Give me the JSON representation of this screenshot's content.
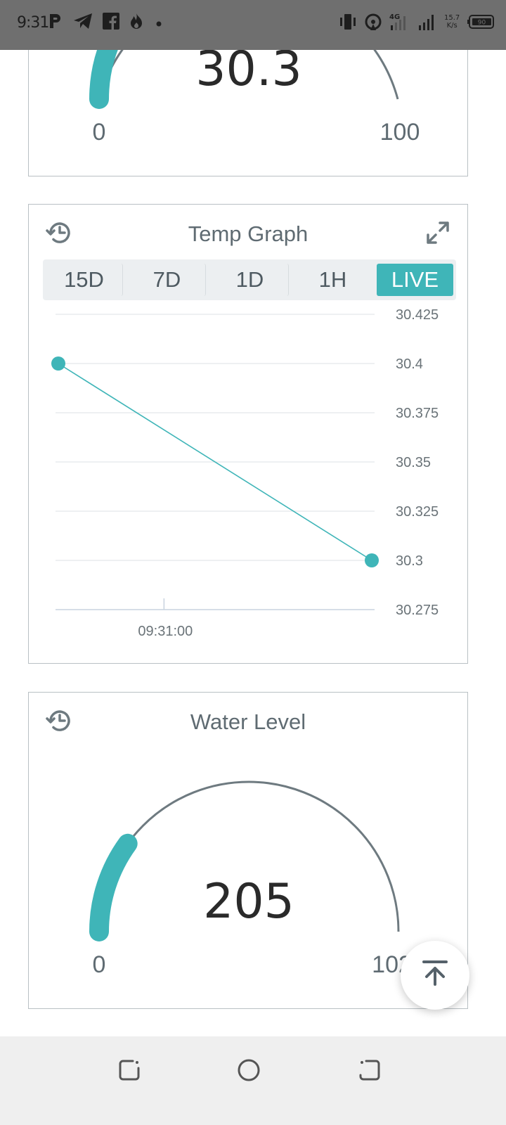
{
  "status_bar": {
    "time": "9:31",
    "left_icons": [
      "parking-p-icon",
      "telegram-icon",
      "facebook-icon",
      "flame-icon",
      "dot-icon"
    ],
    "right_icons": [
      "vibrate-icon",
      "hotspot-icon",
      "4g-signal-icon",
      "signal-icon",
      "battery-icon"
    ],
    "net_speed_value": "15.7",
    "net_speed_unit": "K/s",
    "network_type": "4G",
    "battery_level": "90"
  },
  "temp_gauge": {
    "value": "30.3",
    "min_label": "0",
    "max_label": "100",
    "fill_fraction": 0.303,
    "accent_color": "#3fb5b8"
  },
  "temp_graph": {
    "title": "Temp Graph",
    "history_icon": "history-icon",
    "expand_icon": "expand-icon",
    "tabs": [
      {
        "label": "15D",
        "active": false
      },
      {
        "label": "7D",
        "active": false
      },
      {
        "label": "1D",
        "active": false
      },
      {
        "label": "1H",
        "active": false
      },
      {
        "label": "LIVE",
        "active": true
      }
    ],
    "chart_data": {
      "type": "line",
      "x": [
        "09:30:59",
        "09:31:01"
      ],
      "x_tick_labels": [
        "09:31:00"
      ],
      "series": [
        {
          "values": [
            30.4,
            30.3
          ],
          "color": "#3fb5b8"
        }
      ],
      "y_ticks": [
        "30.425",
        "30.4",
        "30.375",
        "30.35",
        "30.325",
        "30.3",
        "30.275"
      ],
      "ylim": [
        30.275,
        30.425
      ],
      "grid": true,
      "y_axis_position": "right"
    }
  },
  "water_level": {
    "title": "Water Level",
    "history_icon": "history-icon",
    "value": "205",
    "min_label": "0",
    "max_label": "1023",
    "fill_fraction": 0.2,
    "accent_color": "#3fb5b8"
  },
  "fab": {
    "icon": "arrow-up-to-top-icon"
  },
  "navbar": {
    "icons": [
      "recent-apps-icon",
      "home-icon",
      "back-icon"
    ]
  }
}
